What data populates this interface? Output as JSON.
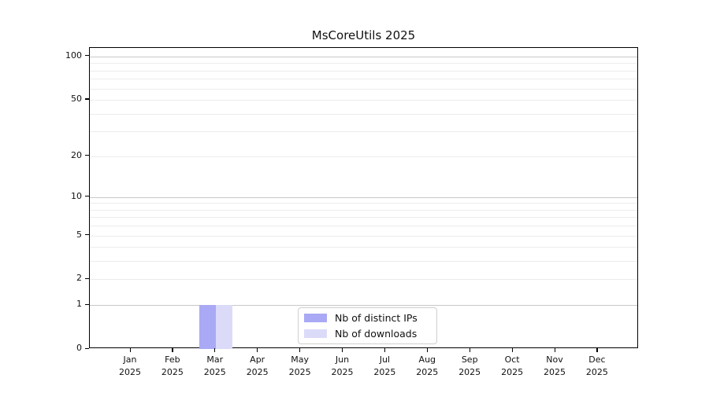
{
  "figure": {
    "title": "MsCoreUtils 2025"
  },
  "chart_data": {
    "type": "bar",
    "title": "MsCoreUtils 2025",
    "categories": [
      "Jan 2025",
      "Feb 2025",
      "Mar 2025",
      "Apr 2025",
      "May 2025",
      "Jun 2025",
      "Jul 2025",
      "Aug 2025",
      "Sep 2025",
      "Oct 2025",
      "Nov 2025",
      "Dec 2025"
    ],
    "series": [
      {
        "name": "Nb of distinct IPs",
        "color": "#a9a9f5",
        "values": [
          0,
          0,
          1,
          0,
          0,
          0,
          0,
          0,
          0,
          0,
          0,
          0
        ]
      },
      {
        "name": "Nb of downloads",
        "color": "#dbdbf9",
        "values": [
          0,
          0,
          1,
          0,
          0,
          0,
          0,
          0,
          0,
          0,
          0,
          0
        ]
      }
    ],
    "xlabel": "",
    "ylabel": "",
    "yscale": "log1p",
    "ylim": [
      0,
      115
    ],
    "yticks": [
      100,
      50,
      20,
      10,
      5,
      2,
      1,
      0
    ],
    "minor_gridlines": [
      1,
      2,
      3,
      4,
      5,
      6,
      7,
      8,
      9,
      10,
      20,
      30,
      40,
      50,
      60,
      70,
      80,
      90,
      100
    ],
    "major_gridlines": [
      1,
      10,
      100
    ],
    "grid": true,
    "legend_position": "bottom-center",
    "colors": {
      "axis": "#000000",
      "minor_grid": "#ececec",
      "major_grid": "#c8c8c8",
      "background": "#ffffff"
    }
  }
}
